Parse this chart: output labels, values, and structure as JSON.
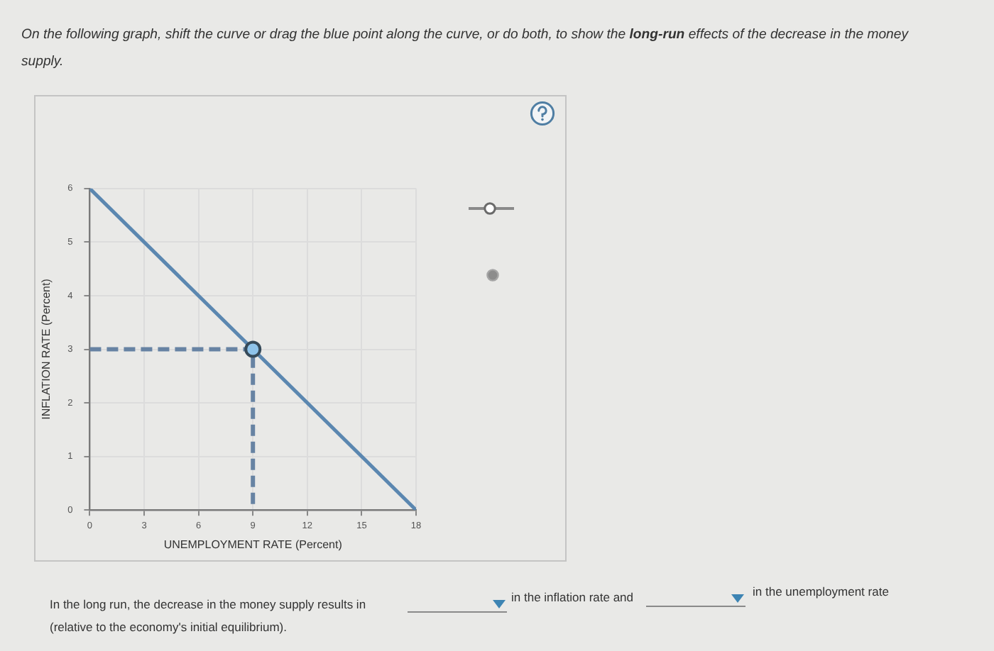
{
  "chart_data": {
    "type": "line",
    "annotations": [
      "On the following graph, shift the curve or drag the blue point along the curve, or do both, to show the",
      "long-run",
      "effects of the decrease in the money",
      "supply.",
      "In the long run, the decrease in the money supply results in",
      "in the inflation rate and",
      "in the unemployment rate",
      "(relative to the economy's initial equilibrium)."
    ],
    "xlabel": "UNEMPLOYMENT RATE (Percent)",
    "ylabel": "INFLATION RATE (Percent)",
    "xlim": [
      0,
      18
    ],
    "ylim": [
      0,
      6
    ],
    "xticks": [
      0,
      3,
      6,
      9,
      12,
      15,
      18
    ],
    "yticks": [
      0,
      1,
      2,
      3,
      4,
      5,
      6
    ],
    "grid": true,
    "series": [
      {
        "type": "line",
        "color": "#5b87b0",
        "x": [
          0,
          18
        ],
        "values": [
          6,
          0
        ]
      },
      {
        "type": "line",
        "color": "#6783a3",
        "line_style": "dashed",
        "x": [
          0,
          9,
          9
        ],
        "values": [
          3,
          3,
          0
        ]
      },
      {
        "type": "scatter",
        "color": "#8ec3ea",
        "marker": "circle",
        "x": [
          9
        ],
        "values": [
          3
        ]
      }
    ]
  }
}
